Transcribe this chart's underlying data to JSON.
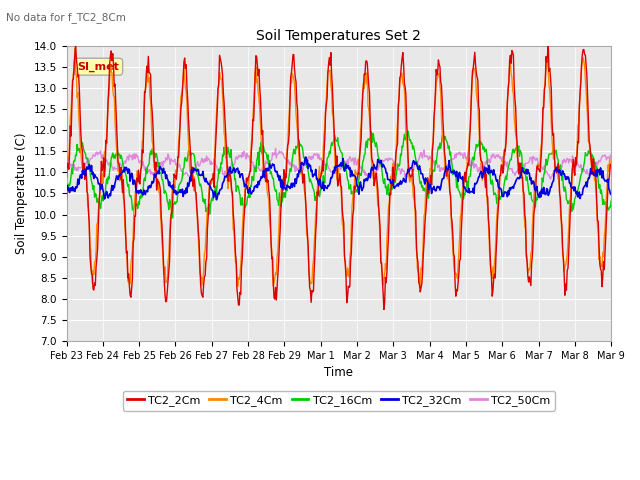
{
  "title": "Soil Temperatures Set 2",
  "subtitle": "No data for f_TC2_8Cm",
  "ylabel": "Soil Temperature (C)",
  "xlabel": "Time",
  "ylim": [
    7.0,
    14.0
  ],
  "yticks": [
    7.0,
    7.5,
    8.0,
    8.5,
    9.0,
    9.5,
    10.0,
    10.5,
    11.0,
    11.5,
    12.0,
    12.5,
    13.0,
    13.5,
    14.0
  ],
  "xtick_labels": [
    "Feb 23",
    "Feb 24",
    "Feb 25",
    "Feb 26",
    "Feb 27",
    "Feb 28",
    "Feb 29",
    "Mar 1",
    "Mar 2",
    "Mar 3",
    "Mar 4",
    "Mar 5",
    "Mar 6",
    "Mar 7",
    "Mar 8",
    "Mar 9"
  ],
  "series": {
    "TC2_2Cm": {
      "color": "#dd0000",
      "lw": 1.0
    },
    "TC2_4Cm": {
      "color": "#ff8800",
      "lw": 1.0
    },
    "TC2_16Cm": {
      "color": "#00cc00",
      "lw": 1.0
    },
    "TC2_32Cm": {
      "color": "#0000dd",
      "lw": 1.2
    },
    "TC2_50Cm": {
      "color": "#dd88dd",
      "lw": 1.0
    }
  },
  "annotation": "SI_met",
  "background_color": "#ffffff",
  "plot_bg": "#e8e8e8",
  "grid_color": "#ffffff"
}
